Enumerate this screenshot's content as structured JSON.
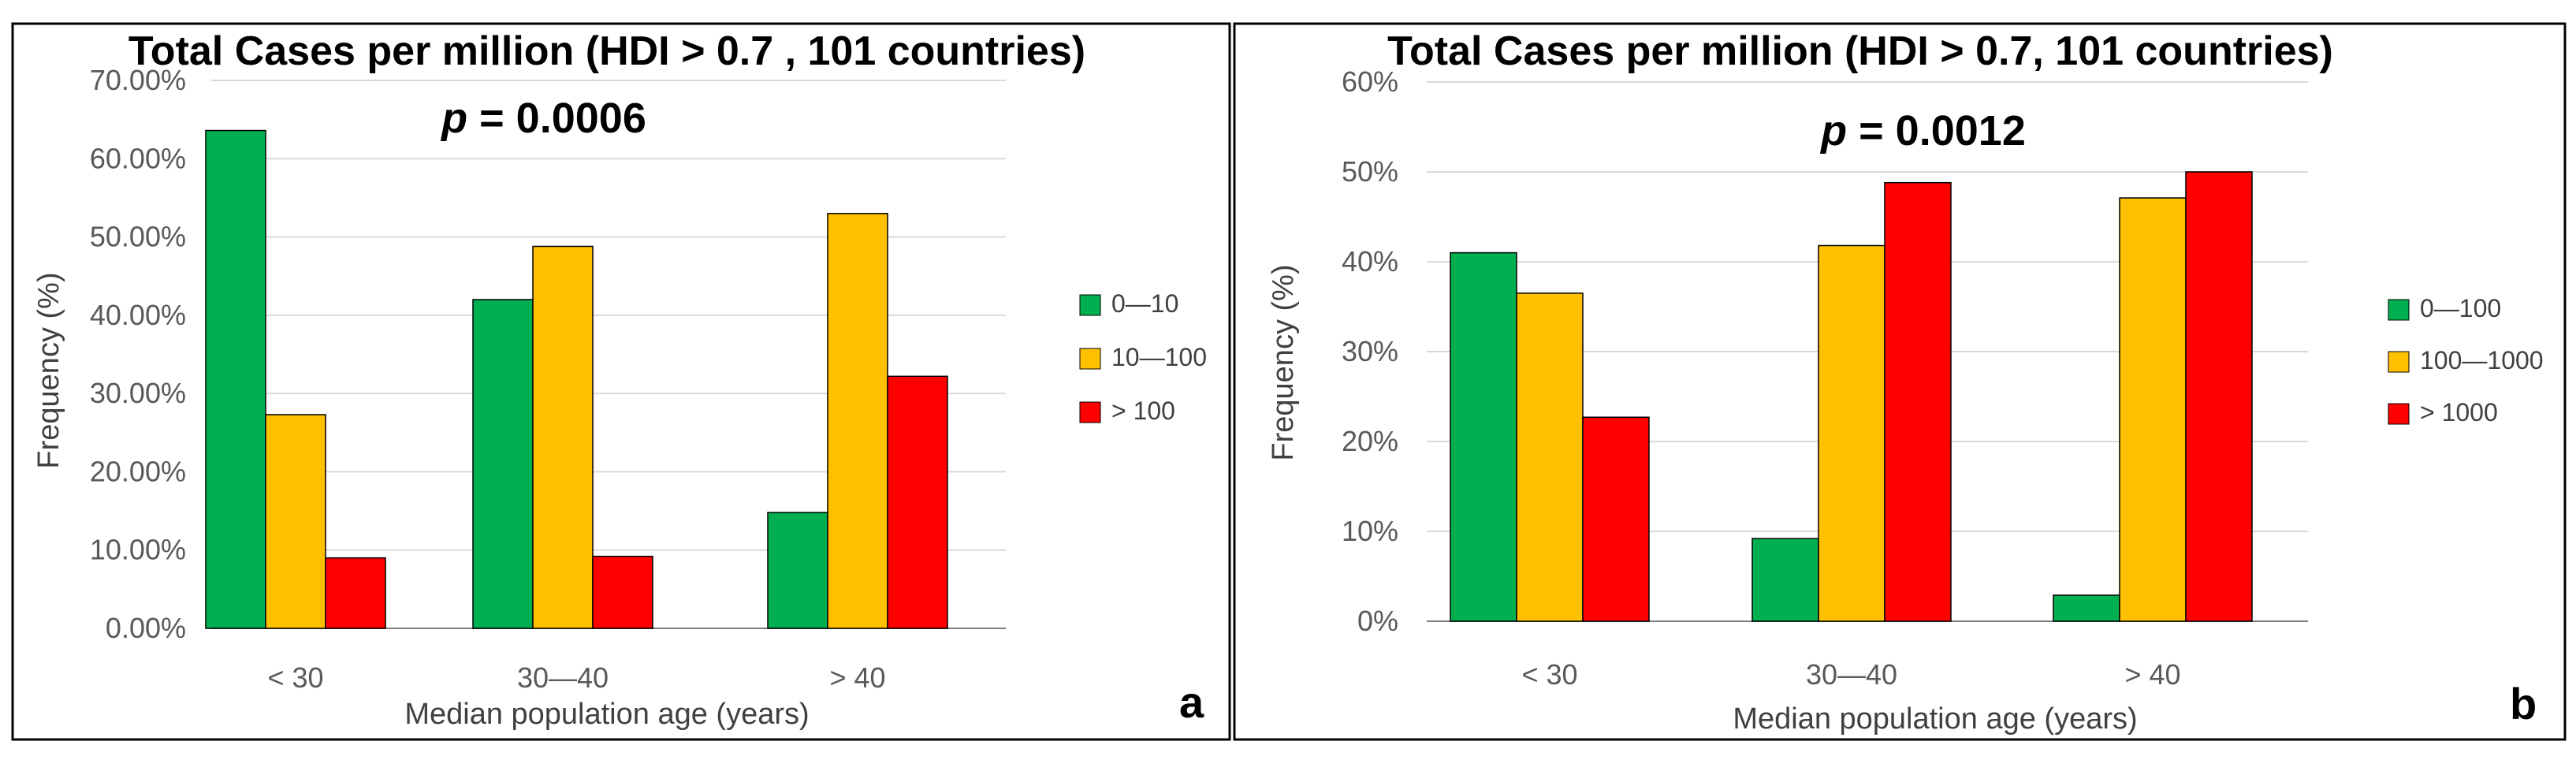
{
  "colors": {
    "green": "#00b050",
    "yellow": "#ffc000",
    "red": "#ff0000"
  },
  "chart_data": [
    {
      "type": "bar",
      "panel": "a",
      "title": "Total Cases per million (HDI > 0.7 , 101 countries)",
      "p_label": "p",
      "p_value": " = 0.0006",
      "xlabel": "Median population age (years)",
      "ylabel": "Frequency (%)",
      "categories": [
        "< 30",
        "30—40",
        "> 40"
      ],
      "ylim": [
        0,
        70
      ],
      "yticks": [
        0,
        10,
        20,
        30,
        40,
        50,
        60,
        70
      ],
      "ytick_labels": [
        "0.00%",
        "10.00%",
        "20.00%",
        "30.00%",
        "40.00%",
        "50.00%",
        "60.00%",
        "70.00%"
      ],
      "grid": true,
      "legend_position": "right",
      "series": [
        {
          "name": "0—10",
          "color": "green",
          "values": [
            63.6,
            42.0,
            14.8
          ]
        },
        {
          "name": "10—100",
          "color": "yellow",
          "values": [
            27.3,
            48.8,
            53.0
          ]
        },
        {
          "name": "> 100",
          "color": "red",
          "values": [
            9.0,
            9.2,
            32.2
          ]
        }
      ]
    },
    {
      "type": "bar",
      "panel": "b",
      "title": "Total Cases per million (HDI > 0.7, 101 countries)",
      "p_label": "p",
      "p_value": " = 0.0012",
      "xlabel": "Median population age (years)",
      "ylabel": "Frequency (%)",
      "categories": [
        "< 30",
        "30—40",
        "> 40"
      ],
      "ylim": [
        0,
        60
      ],
      "yticks": [
        0,
        10,
        20,
        30,
        40,
        50,
        60
      ],
      "ytick_labels": [
        "0%",
        "10%",
        "20%",
        "30%",
        "40%",
        "50%",
        "60%"
      ],
      "grid": true,
      "legend_position": "right",
      "series": [
        {
          "name": "0—100",
          "color": "green",
          "values": [
            41.0,
            9.2,
            2.9
          ]
        },
        {
          "name": "100—1000",
          "color": "yellow",
          "values": [
            36.5,
            41.8,
            47.1
          ]
        },
        {
          "name": "> 1000",
          "color": "red",
          "values": [
            22.7,
            48.8,
            50.0
          ]
        }
      ]
    }
  ]
}
